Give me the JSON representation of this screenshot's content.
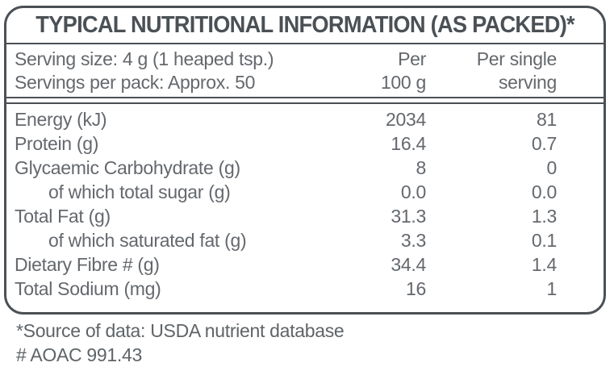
{
  "title": "TYPICAL NUTRITIONAL INFORMATION (AS PACKED)*",
  "serving_info": {
    "serving_size": "Serving size: 4 g (1 heaped tsp.)",
    "servings_per_pack": "Servings per pack: Approx. 50"
  },
  "column_headers": {
    "per_100g": {
      "line1": "Per",
      "line2": "100 g"
    },
    "per_serving": {
      "line1": "Per single",
      "line2": "serving"
    }
  },
  "rows": [
    {
      "label": "Energy (kJ)",
      "per_100g": "2034",
      "per_serving": "81"
    },
    {
      "label": "Protein (g)",
      "per_100g": "16.4",
      "per_serving": "0.7"
    },
    {
      "label": "Glycaemic Carbohydrate (g)",
      "per_100g": "8",
      "per_serving": "0"
    },
    {
      "label": "of which total sugar (g)",
      "per_100g": "0.0",
      "per_serving": "0.0"
    },
    {
      "label": "Total Fat (g)",
      "per_100g": "31.3",
      "per_serving": "1.3"
    },
    {
      "label": "of which saturated fat (g)",
      "per_100g": "3.3",
      "per_serving": "0.1"
    },
    {
      "label": "Dietary Fibre # (g)",
      "per_100g": "34.4",
      "per_serving": "1.4"
    },
    {
      "label": "Total Sodium (mg)",
      "per_100g": "16",
      "per_serving": "1"
    }
  ],
  "footnotes": {
    "source": "*Source of data: USDA nutrient database",
    "method": "# AOAC 991.43"
  },
  "colors": {
    "frame": "#4b5055",
    "title_text": "#4b5055",
    "body_text": "#64686d"
  }
}
